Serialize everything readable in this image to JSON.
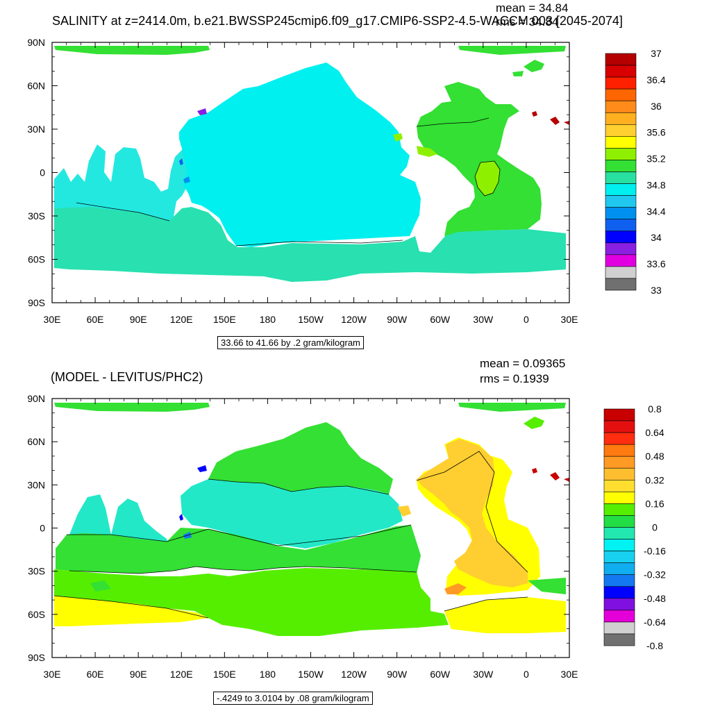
{
  "figure": {
    "top_title": "SALINITY at z=2414.0m, b.e21.BWSSP245cmip6.f09_g17.CMIP6-SSP2-4.5-WACCM.003 [2045-2074]",
    "top_mean": "mean = 34.84",
    "top_rms": "rms = 34.84",
    "bottom_title": "(MODEL - LEVITUS/PHC2)",
    "bottom_mean": "mean = 0.09365",
    "bottom_rms": "rms = 0.1939"
  },
  "chart_data": [
    {
      "type": "heatmap",
      "title": "SALINITY at z=2414.0m, b.e21.BWSSP245cmip6.f09_g17.CMIP6-SSP2-4.5-WACCM.003 [2045-2074]",
      "x_ticks": [
        "30E",
        "60E",
        "90E",
        "120E",
        "150E",
        "180",
        "150W",
        "120W",
        "90W",
        "60W",
        "30W",
        "0",
        "30E"
      ],
      "y_ticks": [
        "90N",
        "60N",
        "30N",
        "0",
        "30S",
        "60S",
        "90S"
      ],
      "colorbar_labels": [
        "37",
        "36.4",
        "36",
        "35.6",
        "35.2",
        "34.8",
        "34.4",
        "34",
        "33.6",
        "33"
      ],
      "colorbar_colors": [
        "#b40000",
        "#d80000",
        "#ff2000",
        "#ff6600",
        "#ff8c1a",
        "#ffb020",
        "#ffd030",
        "#ffff00",
        "#8ef000",
        "#33e033",
        "#28e0a0",
        "#00f0f0",
        "#20c8f0",
        "#0090f0",
        "#1060f0",
        "#0000ff",
        "#8a20e0",
        "#e000e0",
        "#d0d0d0",
        "#707070"
      ],
      "contour_range": "33.66 to 41.66 by .2 gram/kilogram",
      "mean": 34.84,
      "rms": 34.84
    },
    {
      "type": "heatmap",
      "title": "(MODEL - LEVITUS/PHC2)",
      "x_ticks": [
        "30E",
        "60E",
        "90E",
        "120E",
        "150E",
        "180",
        "150W",
        "120W",
        "90W",
        "60W",
        "30W",
        "0",
        "30E"
      ],
      "y_ticks": [
        "90N",
        "60N",
        "30N",
        "0",
        "30S",
        "60S",
        "90S"
      ],
      "colorbar_labels": [
        "0.8",
        "0.64",
        "0.48",
        "0.32",
        "0.16",
        "0",
        "-0.16",
        "-0.32",
        "-0.48",
        "-0.64",
        "-0.8"
      ],
      "colorbar_colors": [
        "#c80000",
        "#e41010",
        "#ff2e10",
        "#ff7a10",
        "#ff9a24",
        "#ffbe30",
        "#ffde30",
        "#ffff00",
        "#55ee00",
        "#22dd44",
        "#22e8b0",
        "#00f2f2",
        "#18d0f0",
        "#10aef0",
        "#1478f0",
        "#0000ff",
        "#8010e0",
        "#e400d8",
        "#d0d0d0",
        "#707070"
      ],
      "contour_range": "-.4249 to 3.0104 by .08 gram/kilogram",
      "mean": 0.09365,
      "rms": 0.1939
    }
  ]
}
